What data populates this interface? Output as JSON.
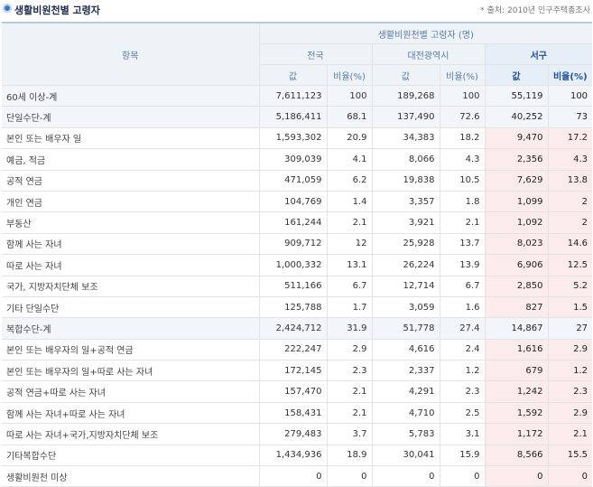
{
  "title": "생활비원천별 고령자",
  "source": "* 출처: 2010년 인구주택총조사",
  "headers": {
    "item": "항목",
    "group": "생활비원천별 고령자 (명)",
    "regions": [
      "전국",
      "대전광역시",
      "서구"
    ],
    "value": "값",
    "ratio": "비율(%)"
  },
  "rows": [
    {
      "label": "60세 이상-계",
      "nat_v": "7,611,123",
      "nat_r": "100",
      "dj_v": "189,268",
      "dj_r": "100",
      "seo_v": "55,119",
      "seo_r": "100",
      "sum": true
    },
    {
      "label": "단일수단-계",
      "nat_v": "5,186,411",
      "nat_r": "68.1",
      "dj_v": "137,490",
      "dj_r": "72.6",
      "seo_v": "40,252",
      "seo_r": "73",
      "sum": true
    },
    {
      "label": "본인 또는 배우자 일",
      "nat_v": "1,593,302",
      "nat_r": "20.9",
      "dj_v": "34,383",
      "dj_r": "18.2",
      "seo_v": "9,470",
      "seo_r": "17.2",
      "sum": false
    },
    {
      "label": "예금, 적금",
      "nat_v": "309,039",
      "nat_r": "4.1",
      "dj_v": "8,066",
      "dj_r": "4.3",
      "seo_v": "2,356",
      "seo_r": "4.3",
      "sum": false
    },
    {
      "label": "공적 연금",
      "nat_v": "471,059",
      "nat_r": "6.2",
      "dj_v": "19,838",
      "dj_r": "10.5",
      "seo_v": "7,629",
      "seo_r": "13.8",
      "sum": false
    },
    {
      "label": "개인 연금",
      "nat_v": "104,769",
      "nat_r": "1.4",
      "dj_v": "3,357",
      "dj_r": "1.8",
      "seo_v": "1,099",
      "seo_r": "2",
      "sum": false
    },
    {
      "label": "부동산",
      "nat_v": "161,244",
      "nat_r": "2.1",
      "dj_v": "3,921",
      "dj_r": "2.1",
      "seo_v": "1,092",
      "seo_r": "2",
      "sum": false
    },
    {
      "label": "함께 사는 자녀",
      "nat_v": "909,712",
      "nat_r": "12",
      "dj_v": "25,928",
      "dj_r": "13.7",
      "seo_v": "8,023",
      "seo_r": "14.6",
      "sum": false
    },
    {
      "label": "따로 사는 자녀",
      "nat_v": "1,000,332",
      "nat_r": "13.1",
      "dj_v": "26,224",
      "dj_r": "13.9",
      "seo_v": "6,906",
      "seo_r": "12.5",
      "sum": false
    },
    {
      "label": "국가, 지방자치단체 보조",
      "nat_v": "511,166",
      "nat_r": "6.7",
      "dj_v": "12,714",
      "dj_r": "6.7",
      "seo_v": "2,850",
      "seo_r": "5.2",
      "sum": false
    },
    {
      "label": "기타 단일수단",
      "nat_v": "125,788",
      "nat_r": "1.7",
      "dj_v": "3,059",
      "dj_r": "1.6",
      "seo_v": "827",
      "seo_r": "1.5",
      "sum": false
    },
    {
      "label": "복합수단-계",
      "nat_v": "2,424,712",
      "nat_r": "31.9",
      "dj_v": "51,778",
      "dj_r": "27.4",
      "seo_v": "14,867",
      "seo_r": "27",
      "sum": true
    },
    {
      "label": "본인 또는 배우자의 일+공적 연금",
      "nat_v": "222,247",
      "nat_r": "2.9",
      "dj_v": "4,616",
      "dj_r": "2.4",
      "seo_v": "1,616",
      "seo_r": "2.9",
      "sum": false
    },
    {
      "label": "본인 또는 배우자의 일+따로 사는 자녀",
      "nat_v": "172,145",
      "nat_r": "2.3",
      "dj_v": "2,337",
      "dj_r": "1.2",
      "seo_v": "679",
      "seo_r": "1.2",
      "sum": false
    },
    {
      "label": "공적 연금+따로 사는 자녀",
      "nat_v": "157,470",
      "nat_r": "2.1",
      "dj_v": "4,291",
      "dj_r": "2.3",
      "seo_v": "1,242",
      "seo_r": "2.3",
      "sum": false
    },
    {
      "label": "함께 사는 자녀+따로 사는 자녀",
      "nat_v": "158,431",
      "nat_r": "2.1",
      "dj_v": "4,710",
      "dj_r": "2.5",
      "seo_v": "1,592",
      "seo_r": "2.9",
      "sum": false
    },
    {
      "label": "따로 사는 자녀+국가,지방자치단체 보조",
      "nat_v": "279,483",
      "nat_r": "3.7",
      "dj_v": "5,783",
      "dj_r": "3.1",
      "seo_v": "1,172",
      "seo_r": "2.1",
      "sum": false
    },
    {
      "label": "기타복합수단",
      "nat_v": "1,434,936",
      "nat_r": "18.9",
      "dj_v": "30,041",
      "dj_r": "15.9",
      "seo_v": "8,566",
      "seo_r": "15.5",
      "sum": false
    },
    {
      "label": "생활비원천 미상",
      "nat_v": "0",
      "nat_r": "0",
      "dj_v": "0",
      "dj_r": "0",
      "seo_v": "0",
      "seo_r": "0",
      "sum": false
    }
  ],
  "colors": {
    "highlight_cell": "#fcebeb",
    "header_bg": "#eef3f8",
    "header_text": "#5a7aa8",
    "title_icon": "#3a73c8"
  }
}
